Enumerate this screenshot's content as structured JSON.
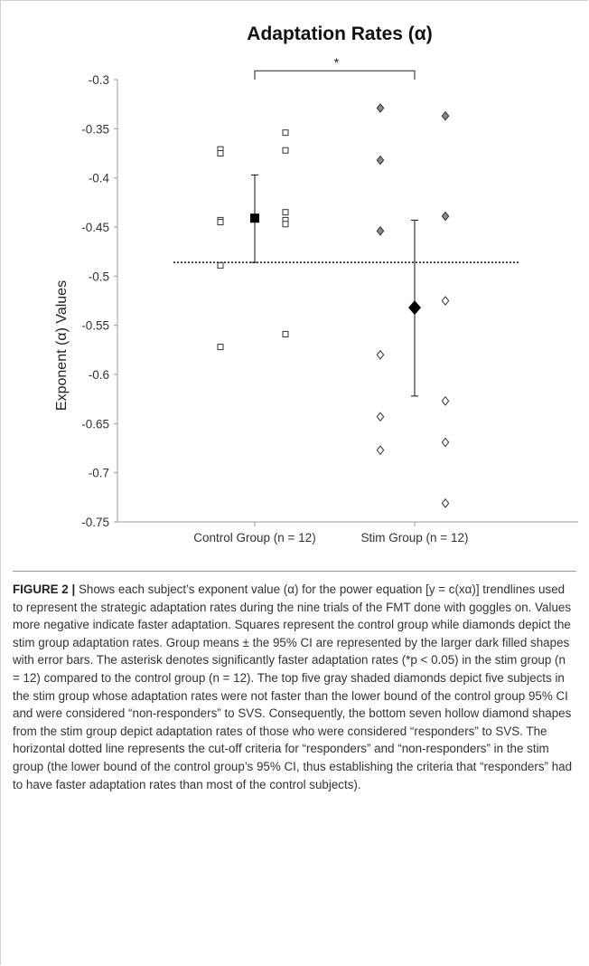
{
  "chart_data": {
    "type": "scatter",
    "title": "Adaptation Rates (α)",
    "ylabel": "Exponent (α) Values",
    "xlabel": "",
    "categories": [
      "Control Group (n = 12)",
      "Stim Group (n = 12)"
    ],
    "ylim": [
      -0.75,
      -0.3
    ],
    "yticks": [
      "-0.3",
      "-0.35",
      "-0.4",
      "-0.45",
      "-0.5",
      "-0.55",
      "-0.6",
      "-0.65",
      "-0.7",
      "-0.75"
    ],
    "ytick_values": [
      -0.3,
      -0.35,
      -0.4,
      -0.45,
      -0.5,
      -0.55,
      -0.6,
      -0.65,
      -0.7,
      -0.75
    ],
    "grid": false,
    "series": [
      {
        "group": "Control Group (n = 12)",
        "marker": "hollow-square",
        "color": "#333333",
        "columns": [
          [
            -0.371,
            -0.375,
            -0.443,
            -0.445,
            -0.489,
            -0.572
          ],
          [
            -0.354,
            -0.372,
            -0.435,
            -0.443,
            -0.447,
            -0.559
          ]
        ]
      },
      {
        "group": "Stim Group (n = 12)",
        "marker": "diamond",
        "columns": [
          [
            {
              "v": -0.329,
              "shaded": true
            },
            {
              "v": -0.382,
              "shaded": true
            },
            {
              "v": -0.454,
              "shaded": true
            },
            {
              "v": -0.58,
              "shaded": false
            },
            {
              "v": -0.643,
              "shaded": false
            },
            {
              "v": -0.677,
              "shaded": false
            }
          ],
          [
            {
              "v": -0.337,
              "shaded": true
            },
            {
              "v": -0.439,
              "shaded": true
            },
            {
              "v": -0.525,
              "shaded": false
            },
            {
              "v": -0.627,
              "shaded": false
            },
            {
              "v": -0.669,
              "shaded": false
            },
            {
              "v": -0.731,
              "shaded": false
            }
          ]
        ]
      }
    ],
    "means": [
      {
        "group": "Control Group (n = 12)",
        "marker": "filled-square",
        "mean": -0.441,
        "ci_low": -0.486,
        "ci_high": -0.397
      },
      {
        "group": "Stim Group (n = 12)",
        "marker": "filled-diamond",
        "mean": -0.532,
        "ci_low": -0.622,
        "ci_high": -0.443
      }
    ],
    "reference_line": {
      "value": -0.486,
      "style": "dotted"
    },
    "significance": {
      "label": "*",
      "between": [
        "Control Group (n = 12)",
        "Stim Group (n = 12)"
      ]
    },
    "colors": {
      "hollow_marker": "#333333",
      "shaded_diamond": "#8a8a8a",
      "mean_marker": "#000000"
    }
  },
  "caption": {
    "label": "FIGURE 2 |",
    "text": " Shows each subject’s exponent value (α) for the power equation [y = c(xα)] trendlines used to represent the strategic adaptation rates during the nine trials of the FMT done with goggles on. Values more negative indicate faster adaptation. Squares represent the control group while diamonds depict the stim group adaptation rates. Group means ± the 95% CI are represented by the larger dark filled shapes with error bars. The asterisk denotes significantly faster adaptation rates (*p < 0.05) in the stim group (n = 12) compared to the control group (n = 12). The top five gray shaded diamonds depict five subjects in the stim group whose adaptation rates were not faster than the lower bound of the control group 95% CI and were considered “non-responders” to SVS. Consequently, the bottom seven hollow diamond shapes from the stim group depict adaptation rates of those who were considered “responders” to SVS. The horizontal dotted line represents the cut-off criteria for “responders” and “non-responders” in the stim group (the lower bound of the control group’s 95% CI, thus establishing the criteria that “responders” had to have faster adaptation rates than most of the control subjects)."
  }
}
